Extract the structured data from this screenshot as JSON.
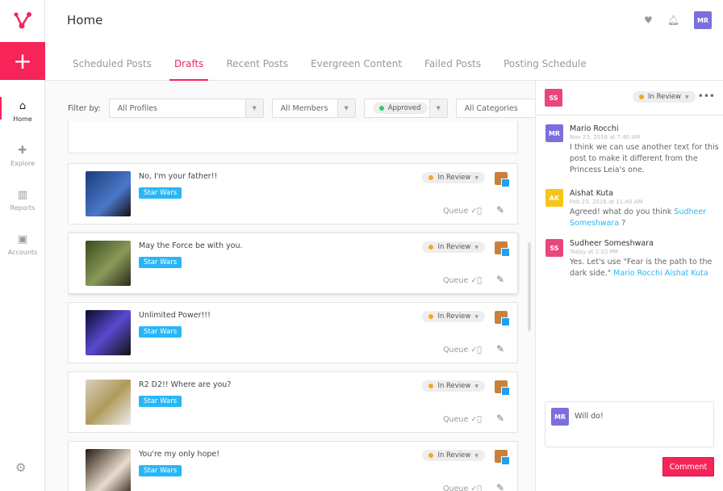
{
  "colors": {
    "brand": "#f7245a",
    "tag": "#29b6f6",
    "review": "#f5a623",
    "approved": "#2ecc71"
  },
  "sidebar": {
    "items": [
      {
        "label": "Home",
        "icon": "home-icon"
      },
      {
        "label": "Explore",
        "icon": "explore-icon"
      },
      {
        "label": "Reports",
        "icon": "reports-icon"
      },
      {
        "label": "Accounts",
        "icon": "accounts-icon"
      }
    ]
  },
  "header": {
    "title": "Home",
    "user_initials": "MR"
  },
  "tabs": [
    "Scheduled Posts",
    "Drafts",
    "Recent Posts",
    "Evergreen Content",
    "Failed Posts",
    "Posting Schedule"
  ],
  "filters": {
    "label": "Filter by:",
    "profiles": "All Profiles",
    "members": "All Members",
    "approval": "Approved",
    "categories": "All Categories"
  },
  "posts": [
    {
      "text": "No, I'm your father!!",
      "tag": "Star Wars",
      "status": "In Review",
      "queue": "Queue"
    },
    {
      "text": "May the Force be with you.",
      "tag": "Star Wars",
      "status": "In Review",
      "queue": "Queue"
    },
    {
      "text": "Unlimited Power!!!",
      "tag": "Star Wars",
      "status": "In Review",
      "queue": "Queue"
    },
    {
      "text": "R2 D2!! Where are you?",
      "tag": "Star Wars",
      "status": "In Review",
      "queue": "Queue"
    },
    {
      "text": "You're my only hope!",
      "tag": "Star Wars",
      "status": "In Review",
      "queue": "Queue"
    }
  ],
  "panel": {
    "owner_initials": "SS",
    "status": "In Review",
    "comments": [
      {
        "initials": "MR",
        "name": "Mario Rocchi",
        "time": "Nov 23, 2016 at 7:40 AM",
        "text": "I think we can use another text for this post to make it different from the Princess Leia's one.",
        "mentions": []
      },
      {
        "initials": "AK",
        "name": "Aishat Kuta",
        "time": "Feb 23, 2016 at 11:40 AM",
        "text": "Agreed! what do you think",
        "mentions": [
          "Sudheer Someshwara"
        ],
        "suffix": "?"
      },
      {
        "initials": "SS",
        "name": "Sudheer Someshwara",
        "time": "Today at 1:22 PM",
        "text": "Yes. Let's use \"Fear is the path to the dark side.\"",
        "mentions": [
          "Mario Rocchi",
          "Aishat Kuta"
        ]
      }
    ],
    "draft": "Will do!",
    "draft_initials": "MR",
    "comment_button": "Comment"
  }
}
